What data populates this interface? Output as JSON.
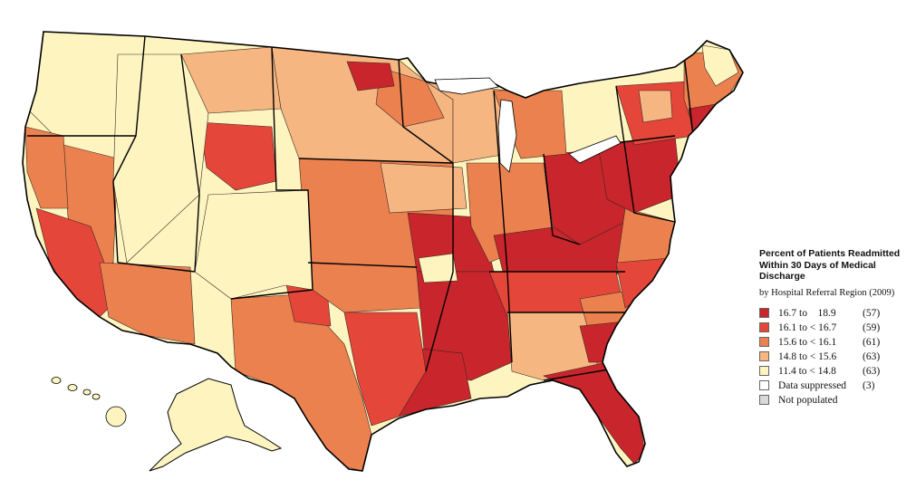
{
  "legend": {
    "title_lines": [
      "Percent of Patients Readmitted",
      "Within 30 Days of Medical",
      "Discharge"
    ],
    "subtitle": "by Hospital Referral Region (2009)",
    "items": [
      {
        "range": "16.7 to    18.9",
        "count": "(57)",
        "color": "#c8252c"
      },
      {
        "range": "16.1 to < 16.7",
        "count": "(59)",
        "color": "#e5463a"
      },
      {
        "range": "15.6 to < 16.1",
        "count": "(61)",
        "color": "#ec8150"
      },
      {
        "range": "14.8 to < 15.6",
        "count": "(63)",
        "color": "#f6b682"
      },
      {
        "range": "11.4 to < 14.8",
        "count": "(63)",
        "color": "#fdf4c0"
      },
      {
        "range": "Data suppressed",
        "count": "(3)",
        "color": "#ffffff"
      },
      {
        "range": "Not populated",
        "count": "",
        "color": "#d9d9d9"
      }
    ]
  }
}
